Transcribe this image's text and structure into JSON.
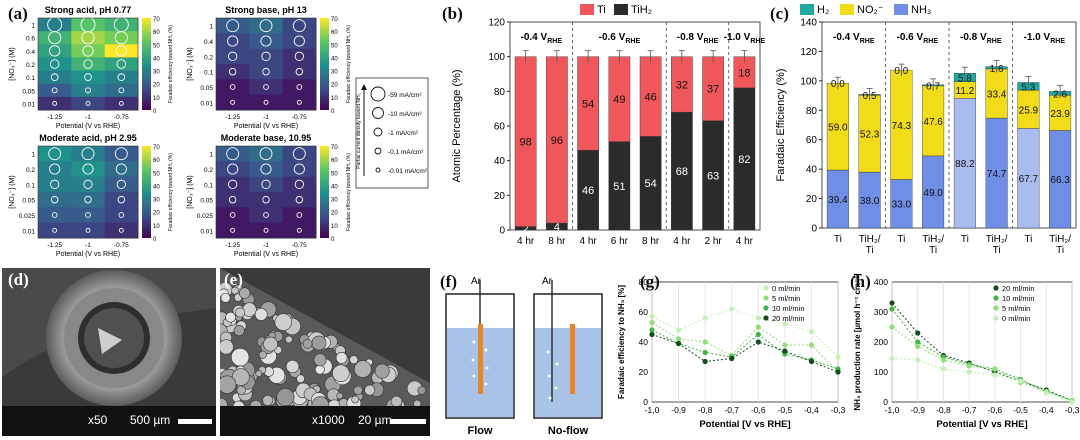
{
  "panel_labels": {
    "a": "(a)",
    "b": "(b)",
    "c": "(c)",
    "d": "(d)",
    "e": "(e)",
    "f": "(f)",
    "g": "(g)",
    "h": "(h)"
  },
  "panel_a": {
    "maps": [
      {
        "title": "Strong acid, pH 0.77",
        "ylabel": "[NO₃⁻] (M)",
        "yticks": [
          "1",
          "0.6",
          "0.4",
          "0.2",
          "0.1",
          "0.05",
          "0.01"
        ],
        "xticks": [
          "-1.25",
          "-1",
          "-0.75"
        ],
        "xlabel": "Potential (V vs RHE)",
        "cbar_label": "Faradaic efficiency toward NH₃ (%)",
        "cbar_ticks": [
          "70",
          "60",
          "50",
          "40",
          "30",
          "20",
          "10",
          "0"
        ],
        "fe": [
          [
            30,
            50,
            45
          ],
          [
            45,
            60,
            55
          ],
          [
            40,
            55,
            70
          ],
          [
            35,
            45,
            40
          ],
          [
            30,
            35,
            30
          ],
          [
            20,
            30,
            25
          ],
          [
            10,
            15,
            10
          ]
        ]
      },
      {
        "title": "Strong base, pH 13",
        "ylabel": "[NO₃⁻] (M)",
        "yticks": [
          "1",
          "0.4",
          "0.2",
          "0.1",
          "0.05",
          "0.01"
        ],
        "xticks": [
          "-1.25",
          "-1",
          "-0.75"
        ],
        "xlabel": "Potential (V vs RHE)",
        "cbar_label": "Faradaic efficiency toward NH₃ (%)",
        "cbar_ticks": [
          "70",
          "60",
          "50",
          "40",
          "30",
          "20",
          "10",
          "0"
        ],
        "fe": [
          [
            20,
            25,
            15
          ],
          [
            15,
            20,
            15
          ],
          [
            15,
            15,
            10
          ],
          [
            10,
            15,
            10
          ],
          [
            5,
            10,
            5
          ],
          [
            5,
            5,
            5
          ]
        ]
      },
      {
        "title": "Moderate acid, pH 2.95",
        "ylabel": "[NO₃⁻] (M)",
        "yticks": [
          "1",
          "0.2",
          "0.1",
          "0.05",
          "0.025",
          "0.01"
        ],
        "xticks": [
          "-1.25",
          "-1",
          "-0.75"
        ],
        "xlabel": "Potential (V vs RHE)",
        "cbar_label": "Faradaic efficiency toward NH₃ (%)",
        "cbar_ticks": [
          "70",
          "60",
          "50",
          "40",
          "30",
          "20",
          "10",
          "0"
        ],
        "fe": [
          [
            35,
            30,
            20
          ],
          [
            30,
            35,
            25
          ],
          [
            30,
            30,
            20
          ],
          [
            25,
            25,
            15
          ],
          [
            20,
            20,
            15
          ],
          [
            15,
            15,
            10
          ]
        ]
      },
      {
        "title": "Moderate base, 10.95",
        "ylabel": "[NO₃⁻] (M)",
        "yticks": [
          "1",
          "0.2",
          "0.1",
          "0.05",
          "0.025",
          "0.01"
        ],
        "xticks": [
          "-1.25",
          "-1",
          "-0.75"
        ],
        "xlabel": "Potential (V vs RHE)",
        "cbar_label": "Faradaic efficiency toward NH₃ (%)",
        "cbar_ticks": [
          "70",
          "60",
          "50",
          "40",
          "30",
          "20",
          "10",
          "0"
        ],
        "fe": [
          [
            20,
            25,
            15
          ],
          [
            15,
            20,
            15
          ],
          [
            10,
            15,
            10
          ],
          [
            10,
            10,
            10
          ],
          [
            5,
            10,
            5
          ],
          [
            5,
            5,
            5
          ]
        ]
      }
    ],
    "legend": {
      "axis_label": "Partial current density toward NH₃",
      "items": [
        "-59 mA/cm²",
        "-10 mA/cm²",
        "-1 mA/cm²",
        "-0.1 mA/cm²",
        "-0.01 mA/cm²"
      ]
    }
  },
  "panel_d": {
    "magnification": "x50",
    "scalebar": "500 µm"
  },
  "panel_e": {
    "magnification": "x1000",
    "scalebar": "20 µm"
  },
  "panel_f": {
    "gas": "Ar",
    "labels": [
      "Flow",
      "No-flow"
    ]
  },
  "chart_data": [
    {
      "type": "bar",
      "id": "b",
      "ylabel": "Atomic Percentage (%)",
      "ylim": [
        0,
        120
      ],
      "yticks": [
        0,
        20,
        40,
        60,
        80,
        100,
        120
      ],
      "legend": [
        "Ti",
        "TiH₂"
      ],
      "colors": {
        "Ti": "#f0575a",
        "TiH2": "#2b2b2b"
      },
      "categories": [
        "4 hr",
        "8 hr",
        "4 hr",
        "6 hr",
        "8 hr",
        "4 hr",
        "2 hr",
        "4 hr"
      ],
      "group_labels": [
        "-0.4 V",
        "-0.6 V",
        "-0.8 V",
        "-1.0 V"
      ],
      "group_label_sub": "RHE",
      "series": [
        {
          "name": "TiH₂",
          "values": [
            2,
            4,
            46,
            51,
            54,
            68,
            63,
            82
          ],
          "labels": [
            "2",
            "4",
            "46",
            "51",
            "54",
            "68",
            "63",
            "82"
          ]
        },
        {
          "name": "Ti",
          "values": [
            98,
            96,
            54,
            49,
            46,
            32,
            37,
            18
          ],
          "labels": [
            "98",
            "96",
            "54",
            "49",
            "46",
            "32",
            "37",
            "18"
          ]
        }
      ]
    },
    {
      "type": "bar",
      "id": "c",
      "ylabel": "Faradaic Efficiency (%)",
      "ylim": [
        0,
        140
      ],
      "yticks": [
        0,
        20,
        40,
        60,
        80,
        100,
        120,
        140
      ],
      "legend": [
        "H₂",
        "NO₂⁻",
        "NH₃"
      ],
      "colors": {
        "H2": "#1fa9a3",
        "NO2": "#f2dc1a",
        "NH3": "#6f8fe6",
        "NH3_light": "#a9bcf0"
      },
      "categories": [
        "Ti",
        "TiH₂/Ti",
        "Ti",
        "TiH₂/Ti",
        "Ti",
        "TiH₂/Ti",
        "Ti",
        "TiH₂/Ti"
      ],
      "group_labels": [
        "-0.4 V",
        "-0.6 V",
        "-0.8 V",
        "-1.0 V"
      ],
      "group_label_sub": "RHE",
      "series": [
        {
          "name": "NH₃",
          "values": [
            39.4,
            38.0,
            33.0,
            49.0,
            88.2,
            74.7,
            67.7,
            66.3
          ],
          "labels": [
            "39.4",
            "38.0",
            "33.0",
            "49.0",
            "88.2",
            "74.7",
            "67.7",
            "66.3"
          ]
        },
        {
          "name": "NO₂⁻",
          "values": [
            59.0,
            52.3,
            74.3,
            47.6,
            11.2,
            33.4,
            25.9,
            23.9
          ],
          "labels": [
            "59.0",
            "52.3",
            "74.3",
            "47.6",
            "11.2",
            "33.4",
            "25.9",
            "23.9"
          ]
        },
        {
          "name": "H₂",
          "values": [
            0.0,
            0.5,
            0.0,
            0.7,
            5.8,
            1.6,
            5.3,
            2.6
          ],
          "labels": [
            "0.0",
            "0.5",
            "0.0",
            "0.7",
            "5.8",
            "1.6",
            "5.3",
            "2.6"
          ]
        }
      ]
    },
    {
      "type": "scatter",
      "id": "g",
      "xlabel": "Potential [V vs RHE]",
      "ylabel": "Faradaic efficiency to NH₃ [%]",
      "xlim": [
        -1.0,
        -0.3
      ],
      "ylim": [
        0,
        80
      ],
      "xticks": [
        "-1,0",
        "-0,9",
        "-0,8",
        "-0,7",
        "-0,6",
        "-0,5",
        "-0,4",
        "-0,3"
      ],
      "yticks": [
        "0",
        "20",
        "40",
        "60",
        "80"
      ],
      "legend_position": "top-right",
      "x": [
        -1.0,
        -0.9,
        -0.8,
        -0.7,
        -0.6,
        -0.5,
        -0.4,
        -0.3
      ],
      "series": [
        {
          "name": "0 ml/min",
          "color": "#c2f2b4",
          "values": [
            57,
            48,
            56,
            62,
            56,
            52,
            47,
            30
          ]
        },
        {
          "name": "5 ml/min",
          "color": "#8fe079",
          "values": [
            53,
            42,
            40,
            31,
            50,
            38,
            38,
            20
          ]
        },
        {
          "name": "10 ml/min",
          "color": "#3fb544",
          "values": [
            48,
            39,
            33,
            30,
            45,
            32,
            28,
            22
          ]
        },
        {
          "name": "20 ml/min",
          "color": "#124d1c",
          "values": [
            45,
            39,
            27,
            29,
            40,
            34,
            27,
            20
          ]
        }
      ]
    },
    {
      "type": "scatter",
      "id": "h",
      "xlabel": "Potential [V vs RHE]",
      "ylabel": "NH₃ production rate [µmol h⁻¹ cm⁻²]",
      "xlim": [
        -1.0,
        -0.3
      ],
      "ylim": [
        0,
        400
      ],
      "xticks": [
        "-1,0",
        "-0,9",
        "-0,8",
        "-0,7",
        "-0,6",
        "-0,5",
        "-0,4",
        "-0,3"
      ],
      "yticks": [
        "0",
        "100",
        "200",
        "300",
        "400"
      ],
      "legend_position": "top-right",
      "x": [
        -1.0,
        -0.9,
        -0.8,
        -0.7,
        -0.6,
        -0.5,
        -0.4,
        -0.3
      ],
      "series": [
        {
          "name": "20 ml/min",
          "color": "#124d1c",
          "values": [
            330,
            230,
            155,
            130,
            100,
            70,
            40,
            5
          ]
        },
        {
          "name": "10 ml/min",
          "color": "#3fb544",
          "values": [
            310,
            200,
            150,
            125,
            110,
            75,
            35,
            5
          ]
        },
        {
          "name": "5 ml/min",
          "color": "#8fe079",
          "values": [
            250,
            185,
            140,
            120,
            110,
            65,
            35,
            5
          ]
        },
        {
          "name": "0 ml/min",
          "color": "#c2f2b4",
          "values": [
            145,
            140,
            110,
            100,
            90,
            70,
            30,
            0
          ]
        }
      ]
    }
  ]
}
